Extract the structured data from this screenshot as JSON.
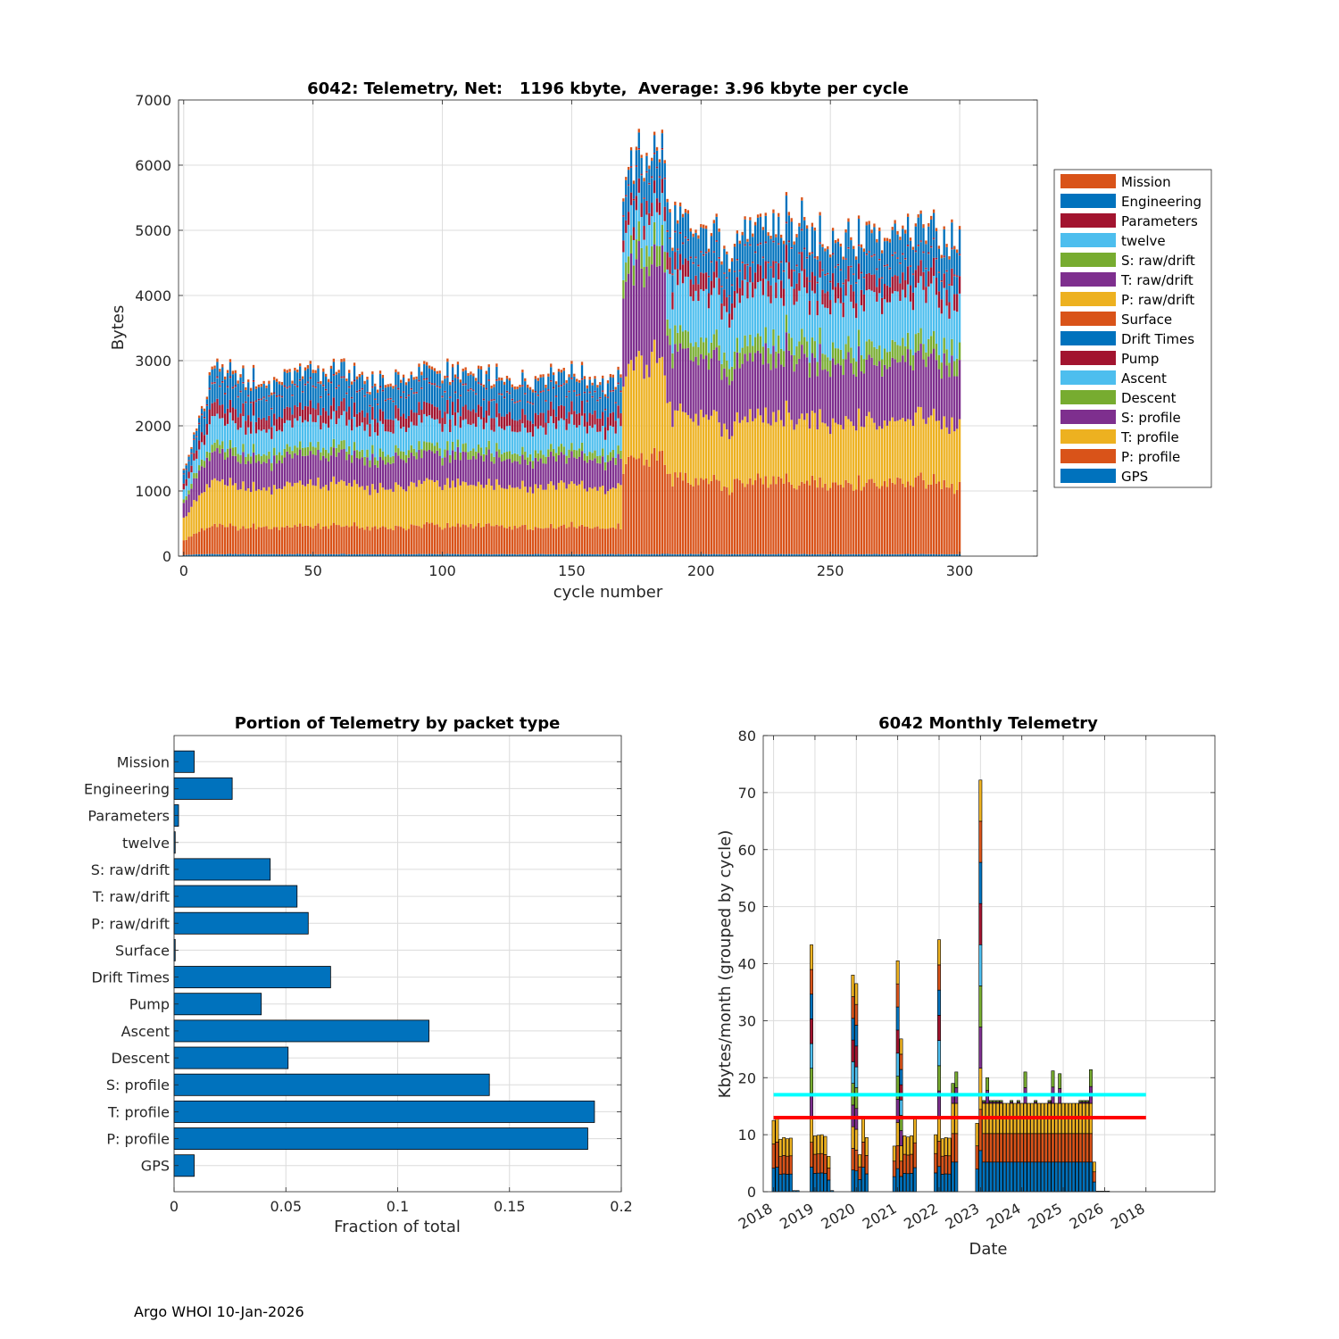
{
  "footer": "Argo WHOI 10-Jan-2026",
  "palette": {
    "orange": "#D95319",
    "blue": "#0072BD",
    "maroon": "#A2142F",
    "cyan": "#4DBEEE",
    "green": "#77AC30",
    "purple": "#7E2F8E",
    "yellow": "#EDB120",
    "ref_cyan": "#00FFFF",
    "ref_red": "#FF0000"
  },
  "chart_data": [
    {
      "id": "top",
      "type": "bar",
      "stacked": true,
      "title": "6042: Telemetry, Net:   1196 kbyte,  Average: 3.96 kbyte per cycle",
      "xlabel": "cycle number",
      "ylabel": "Bytes",
      "xlim": [
        -2,
        330
      ],
      "ylim": [
        0,
        7000
      ],
      "xticks": [
        0,
        50,
        100,
        150,
        200,
        250,
        300
      ],
      "yticks": [
        0,
        1000,
        2000,
        3000,
        4000,
        5000,
        6000,
        7000
      ],
      "grid": true,
      "legend_position": "outside-right",
      "n_cycles": 301,
      "series_order_bottom_to_top": [
        "GPS",
        "P: profile",
        "T: profile",
        "S: profile",
        "Descent",
        "Ascent",
        "Pump",
        "Drift Times",
        "Surface",
        "P: raw/drift",
        "T: raw/drift",
        "S: raw/drift",
        "twelve",
        "Parameters",
        "Engineering",
        "Mission"
      ],
      "legend": [
        {
          "name": "Mission",
          "color": "#D95319"
        },
        {
          "name": "Engineering",
          "color": "#0072BD"
        },
        {
          "name": "Parameters",
          "color": "#A2142F"
        },
        {
          "name": "twelve",
          "color": "#4DBEEE"
        },
        {
          "name": "S: raw/drift",
          "color": "#77AC30"
        },
        {
          "name": "T: raw/drift",
          "color": "#7E2F8E"
        },
        {
          "name": "P: raw/drift",
          "color": "#EDB120"
        },
        {
          "name": "Surface",
          "color": "#D95319"
        },
        {
          "name": "Drift Times",
          "color": "#0072BD"
        },
        {
          "name": "Pump",
          "color": "#A2142F"
        },
        {
          "name": "Ascent",
          "color": "#4DBEEE"
        },
        {
          "name": "Descent",
          "color": "#77AC30"
        },
        {
          "name": "S: profile",
          "color": "#7E2F8E"
        },
        {
          "name": "T: profile",
          "color": "#EDB120"
        },
        {
          "name": "P: profile",
          "color": "#D95319"
        },
        {
          "name": "GPS",
          "color": "#0072BD"
        }
      ],
      "phases": [
        {
          "cycles": [
            0,
            9
          ],
          "layers_bottom_to_top": [
            30,
            380,
            600,
            400,
            100,
            250,
            150,
            250,
            5,
            0,
            0,
            0,
            0,
            20,
            80,
            40
          ],
          "total_range": [
            1200,
            2300
          ]
        },
        {
          "cycles": [
            10,
            169
          ],
          "layers_bottom_to_top": [
            30,
            420,
            620,
            420,
            120,
            380,
            200,
            300,
            5,
            0,
            0,
            0,
            0,
            20,
            190,
            45
          ],
          "total_range": [
            2700,
            3300
          ]
        },
        {
          "cycles": [
            170,
            186
          ],
          "layers_bottom_to_top": [
            30,
            1450,
            1450,
            1450,
            300,
            450,
            200,
            400,
            5,
            0,
            0,
            0,
            0,
            20,
            230,
            50
          ],
          "total_range": [
            5300,
            6700
          ]
        },
        {
          "cycles": [
            187,
            300
          ],
          "layers_bottom_to_top": [
            30,
            1080,
            960,
            900,
            250,
            750,
            250,
            280,
            5,
            0,
            0,
            0,
            0,
            20,
            380,
            50
          ],
          "total_range": [
            4800,
            5300
          ]
        }
      ]
    },
    {
      "id": "bottom-left",
      "type": "barh",
      "title": "Portion of Telemetry by packet type",
      "xlabel": "Fraction of total",
      "ylabel": "",
      "xlim": [
        0,
        0.2
      ],
      "xticks": [
        0,
        0.05,
        0.1,
        0.15,
        0.2
      ],
      "xtick_labels": [
        "0",
        "0.05",
        "0.1",
        "0.15",
        "0.2"
      ],
      "grid": true,
      "bar_color": "#0072BD",
      "categories": [
        "GPS",
        "P: profile",
        "T: profile",
        "S: profile",
        "Descent",
        "Ascent",
        "Pump",
        "Drift Times",
        "Surface",
        "P: raw/drift",
        "T: raw/drift",
        "S: raw/drift",
        "twelve",
        "Parameters",
        "Engineering",
        "Mission"
      ],
      "values": [
        0.009,
        0.185,
        0.188,
        0.141,
        0.051,
        0.114,
        0.039,
        0.07,
        0.0005,
        0.06,
        0.055,
        0.043,
        0.0005,
        0.002,
        0.026,
        0.009
      ]
    },
    {
      "id": "bottom-right",
      "type": "bar",
      "stacked": true,
      "title": "6042 Monthly Telemetry",
      "xlabel": "Date",
      "ylabel": "Kbytes/month (grouped by cycle)",
      "ylim": [
        0,
        80
      ],
      "yticks": [
        0,
        10,
        20,
        30,
        40,
        50,
        60,
        70,
        80
      ],
      "grid": true,
      "x_unit": "month index (0 = start of 2018)",
      "xlim": [
        -3,
        128
      ],
      "xticks": [
        0,
        12,
        24,
        36,
        48,
        60,
        72,
        84,
        96,
        108
      ],
      "xtick_labels": [
        "2018",
        "2019",
        "2020",
        "2021",
        "2022",
        "2023",
        "2024",
        "2025",
        "2026",
        "2018"
      ],
      "reference_lines": [
        {
          "name": "cyan",
          "y": 17,
          "color": "#00FFFF"
        },
        {
          "name": "red",
          "y": 13,
          "color": "#FF0000"
        }
      ],
      "layer_colors_bottom_to_top": [
        "#0072BD",
        "#D95319",
        "#EDB120",
        "#7E2F8E",
        "#77AC30",
        "#4DBEEE",
        "#A2142F",
        "#0072BD",
        "#D95319",
        "#EDB120",
        "#7E2F8E",
        "#77AC30",
        "#4DBEEE",
        "#A2142F"
      ],
      "months": [
        0,
        1,
        2,
        3,
        4,
        5,
        6,
        7,
        11,
        12,
        13,
        14,
        15,
        16,
        17,
        23,
        24,
        25,
        26,
        27,
        35,
        36,
        37,
        38,
        39,
        40,
        41,
        47,
        48,
        49,
        50,
        51,
        52,
        53,
        59,
        60,
        61,
        62,
        63,
        64,
        65,
        66,
        67,
        68,
        69,
        70,
        71,
        72,
        73,
        74,
        75,
        76,
        77,
        78,
        79,
        80,
        81,
        82,
        83,
        84,
        85,
        86,
        87,
        88,
        89,
        90,
        91,
        92,
        93,
        94,
        95,
        96,
        97
      ],
      "totals": [
        12.5,
        13,
        9.2,
        9.5,
        9.3,
        9.4,
        0.2,
        0.2,
        43.3,
        9.8,
        9.9,
        10,
        9.7,
        6.2,
        0.2,
        38,
        36.5,
        6.5,
        13,
        9.5,
        8,
        40.5,
        26.8,
        9.8,
        9.6,
        9.8,
        12.8,
        10,
        44.2,
        9.3,
        9.5,
        9.4,
        19,
        21,
        12,
        72.2,
        16,
        20,
        16,
        16,
        16,
        16,
        15.5,
        15.5,
        16,
        15.5,
        16,
        15.5,
        21,
        15.5,
        15.5,
        16,
        15.5,
        15.5,
        15.5,
        16,
        21.2,
        15.5,
        20.7,
        15.5,
        15,
        15.5,
        15.5,
        15.5,
        16,
        16,
        16,
        21.4,
        5.2,
        0.1,
        0.1,
        0.1,
        0.1
      ]
    }
  ]
}
